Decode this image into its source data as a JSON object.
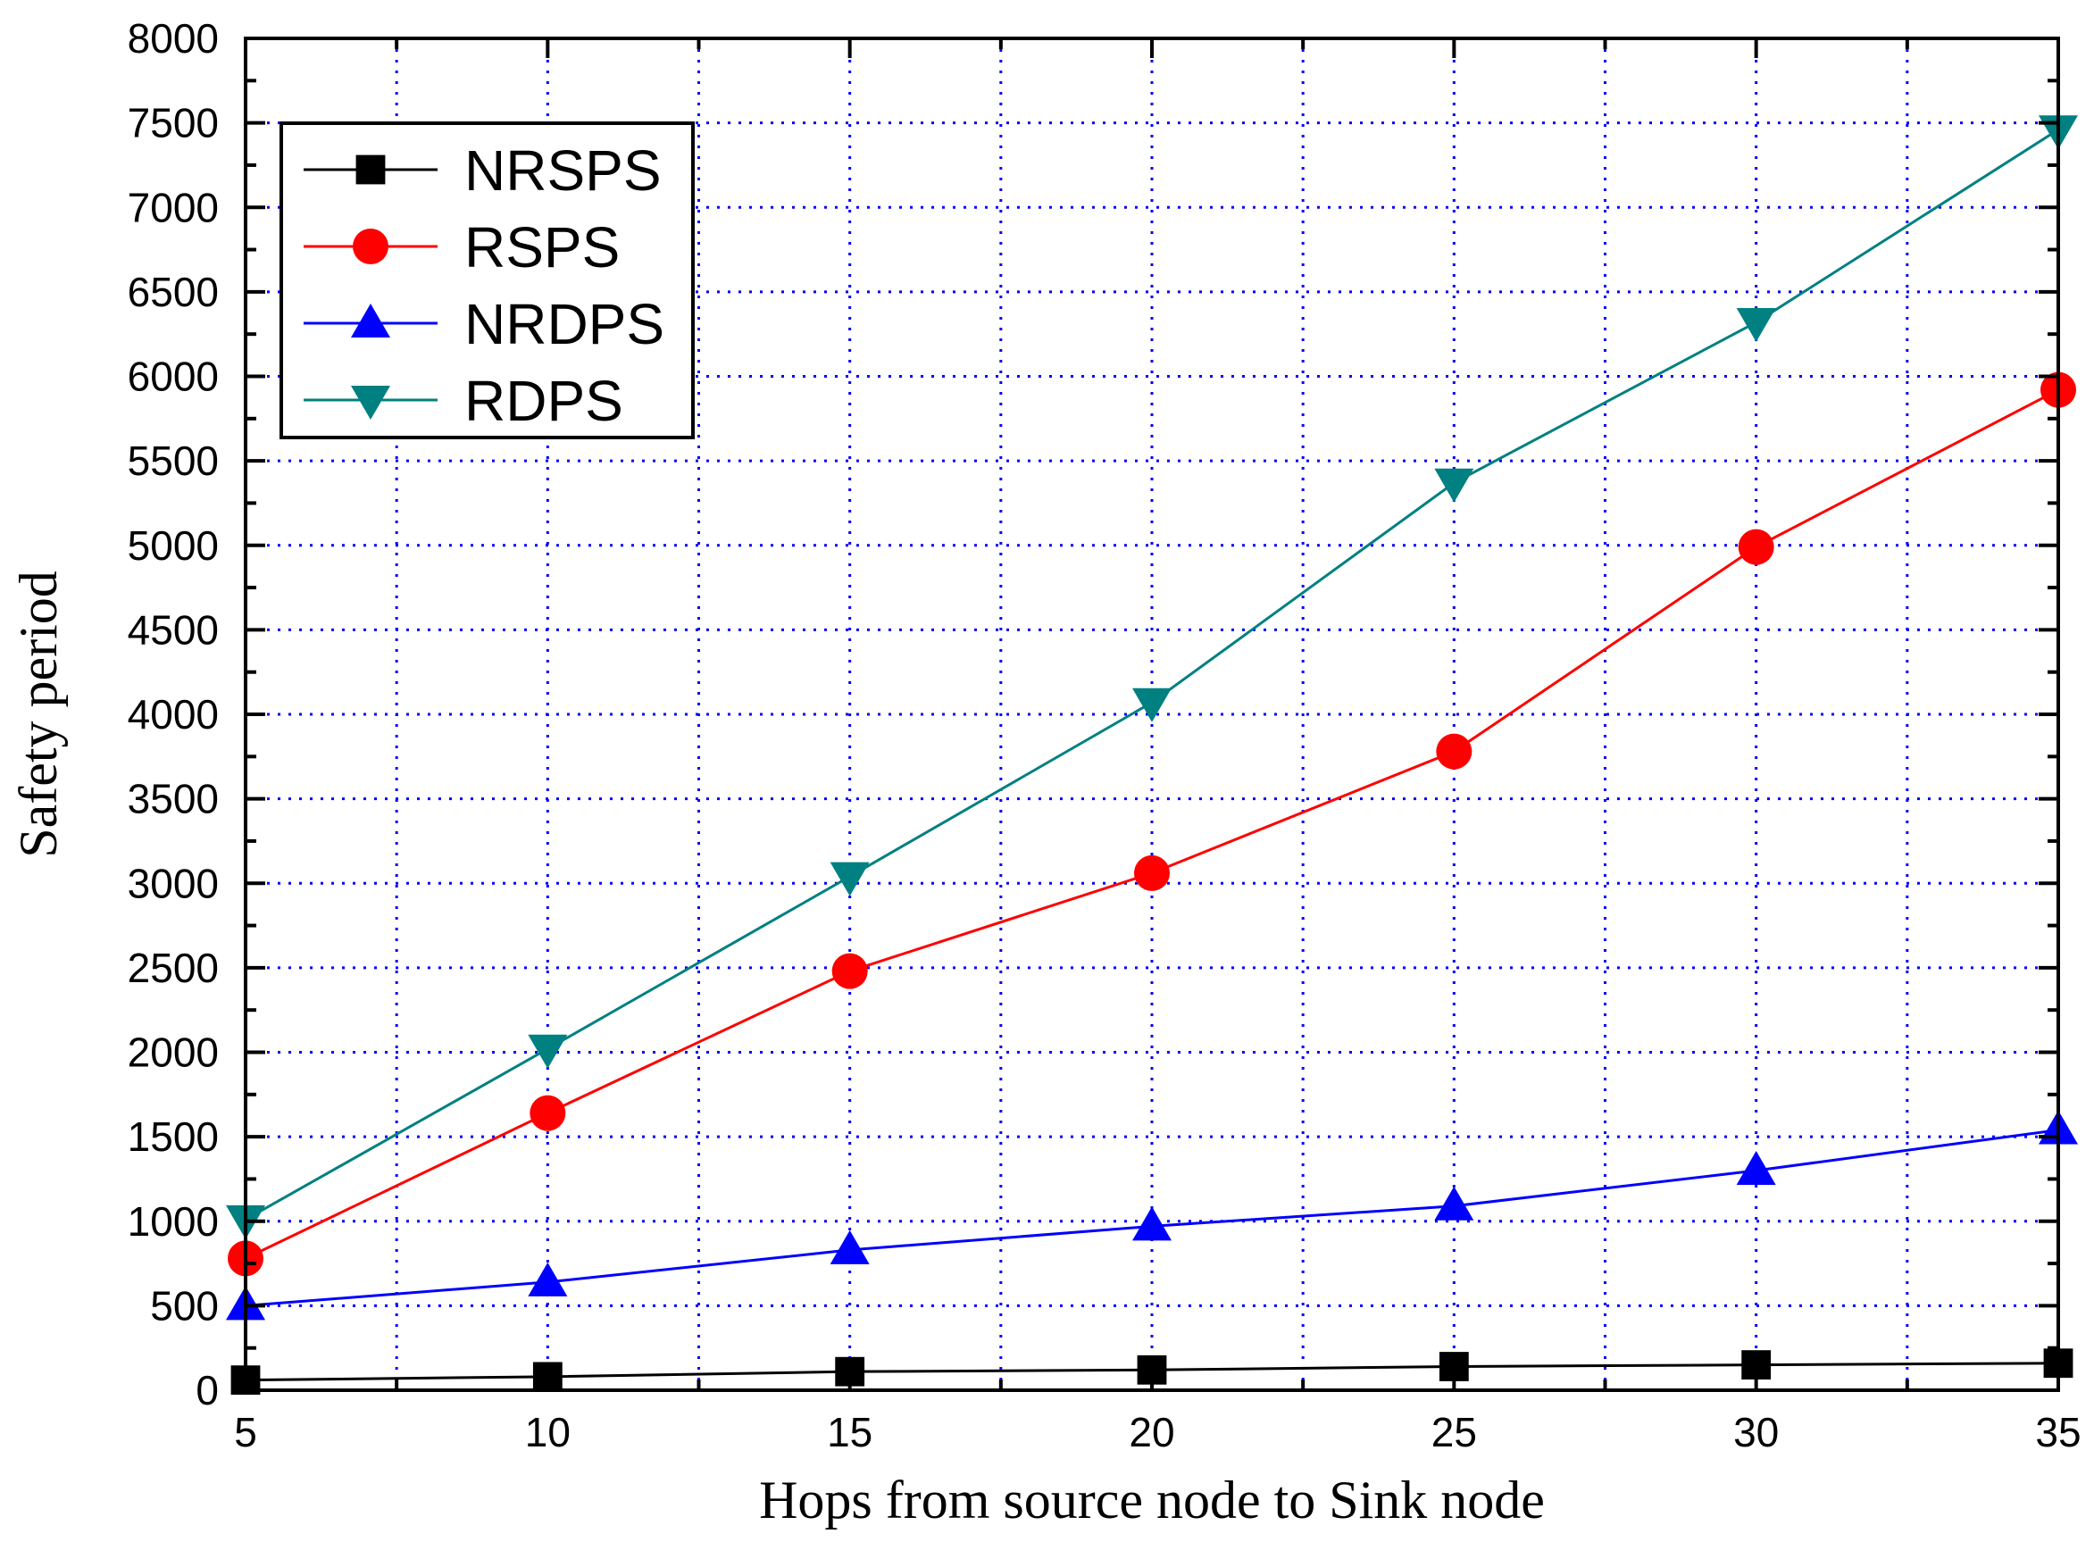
{
  "chart_data": {
    "type": "line",
    "title": "",
    "xlabel": "Hops from source node to Sink node",
    "ylabel": "Safety period",
    "xlim": [
      5,
      35
    ],
    "ylim": [
      0,
      8000
    ],
    "xticks": [
      5,
      10,
      15,
      20,
      25,
      30,
      35
    ],
    "yticks": [
      0,
      500,
      1000,
      1500,
      2000,
      2500,
      3000,
      3500,
      4000,
      4500,
      5000,
      5500,
      6000,
      6500,
      7000,
      7500,
      8000
    ],
    "grid": true,
    "legend_position": "top-left",
    "x": [
      5,
      10,
      15,
      20,
      25,
      30,
      35
    ],
    "series": [
      {
        "name": "NRSPS",
        "color": "#000000",
        "marker": "square",
        "values": [
          60,
          80,
          110,
          120,
          140,
          150,
          160
        ]
      },
      {
        "name": "RSPS",
        "color": "#ff0000",
        "marker": "circle",
        "values": [
          780,
          1640,
          2480,
          3060,
          3780,
          4990,
          5920
        ]
      },
      {
        "name": "NRDPS",
        "color": "#0000ff",
        "marker": "triangle-up",
        "values": [
          500,
          640,
          830,
          970,
          1090,
          1300,
          1540
        ]
      },
      {
        "name": "RDPS",
        "color": "#008080",
        "marker": "triangle-down",
        "values": [
          1010,
          2020,
          3040,
          4070,
          5370,
          6320,
          7460
        ]
      }
    ]
  }
}
